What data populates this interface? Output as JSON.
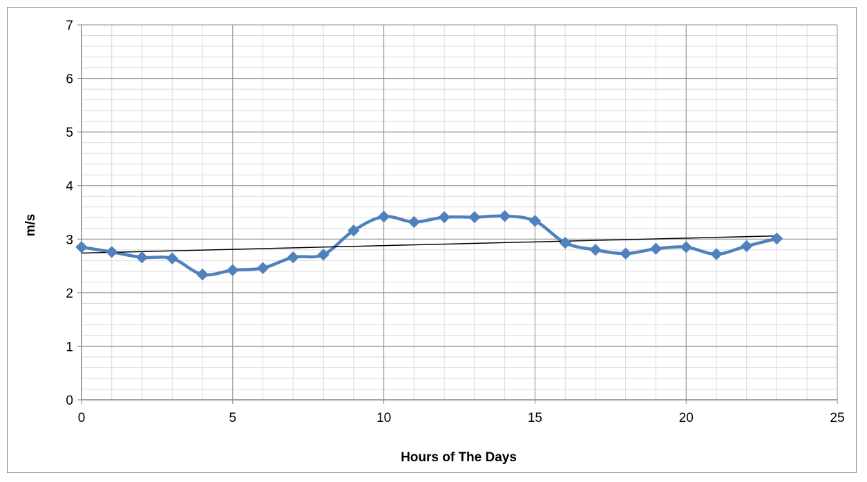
{
  "chart_data": {
    "type": "line",
    "title": "",
    "xlabel": "Hours of The Days",
    "ylabel": "m/s",
    "xlim": [
      0,
      25
    ],
    "ylim": [
      0,
      7
    ],
    "x_ticks": [
      0,
      5,
      10,
      15,
      20,
      25
    ],
    "y_ticks": [
      0,
      1,
      2,
      3,
      4,
      5,
      6,
      7
    ],
    "x_tick_labels": [
      "0",
      "5",
      "10",
      "15",
      "20",
      "25"
    ],
    "y_tick_labels": [
      "0",
      "1",
      "2",
      "3",
      "4",
      "5",
      "6",
      "7"
    ],
    "grid": true,
    "major_grid": {
      "x_step": 5,
      "y_step": 1
    },
    "minor_grid": {
      "x_step": 1,
      "y_step": 0.2
    },
    "legend": "none",
    "series": [
      {
        "x": [
          0,
          1,
          2,
          3,
          4,
          5,
          6,
          7,
          8,
          9,
          10,
          11,
          12,
          13,
          14,
          15,
          16,
          17,
          18,
          19,
          20,
          21,
          22,
          23
        ],
        "values": [
          2.85,
          2.76,
          2.66,
          2.64,
          2.34,
          2.42,
          2.46,
          2.66,
          2.71,
          3.16,
          3.42,
          3.32,
          3.41,
          3.41,
          3.43,
          3.34,
          2.93,
          2.8,
          2.73,
          2.82,
          2.85,
          2.72,
          2.87,
          3.01
        ],
        "color": "#4f81bd",
        "marker": "diamond",
        "smooth": true
      }
    ],
    "trendline": {
      "type": "linear",
      "x": [
        0,
        23
      ],
      "values": [
        2.74,
        3.06
      ],
      "color": "#000000"
    }
  }
}
